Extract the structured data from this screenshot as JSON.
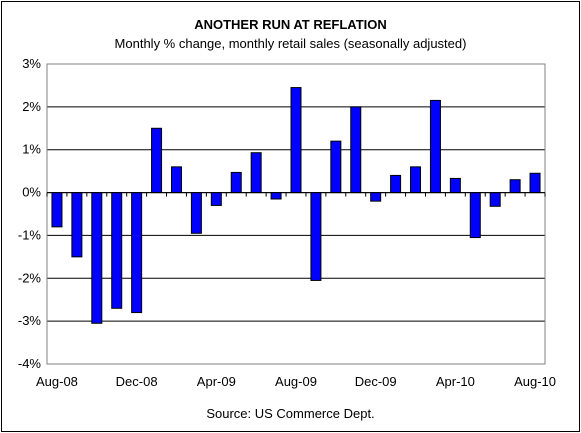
{
  "chart_data": {
    "type": "bar",
    "title": "ANOTHER RUN AT REFLATION",
    "subtitle": "Monthly % change, monthly retail sales (seasonally adjusted)",
    "source": "Source: US Commerce Dept.",
    "xlabel": "",
    "ylabel": "",
    "ylim": [
      -4,
      3
    ],
    "yticks": [
      {
        "value": 3,
        "label": "3%"
      },
      {
        "value": 2,
        "label": "2%"
      },
      {
        "value": 1,
        "label": "1%"
      },
      {
        "value": 0,
        "label": "0%"
      },
      {
        "value": -1,
        "label": "-1%"
      },
      {
        "value": -2,
        "label": "-2%"
      },
      {
        "value": -3,
        "label": "-3%"
      },
      {
        "value": -4,
        "label": "-4%"
      }
    ],
    "categories": [
      "Aug-08",
      "Sep-08",
      "Oct-08",
      "Nov-08",
      "Dec-08",
      "Jan-09",
      "Feb-09",
      "Mar-09",
      "Apr-09",
      "May-09",
      "Jun-09",
      "Jul-09",
      "Aug-09",
      "Sep-09",
      "Oct-09",
      "Nov-09",
      "Dec-09",
      "Jan-10",
      "Feb-10",
      "Mar-10",
      "Apr-10",
      "May-10",
      "Jun-10",
      "Jul-10",
      "Aug-10"
    ],
    "xtick_labels": [
      "Aug-08",
      "Dec-08",
      "Apr-09",
      "Aug-09",
      "Dec-09",
      "Apr-10",
      "Aug-10"
    ],
    "xtick_indices": [
      0,
      4,
      8,
      12,
      16,
      20,
      24
    ],
    "values": [
      -0.8,
      -1.5,
      -3.05,
      -2.7,
      -2.8,
      1.5,
      0.6,
      -0.95,
      -0.3,
      0.47,
      0.93,
      -0.15,
      2.45,
      -2.05,
      1.2,
      2.0,
      -0.2,
      0.4,
      0.6,
      2.15,
      0.33,
      -1.05,
      -0.32,
      0.3,
      0.45
    ],
    "bar_color": "#0000ff",
    "grid": true,
    "legend": "none"
  }
}
